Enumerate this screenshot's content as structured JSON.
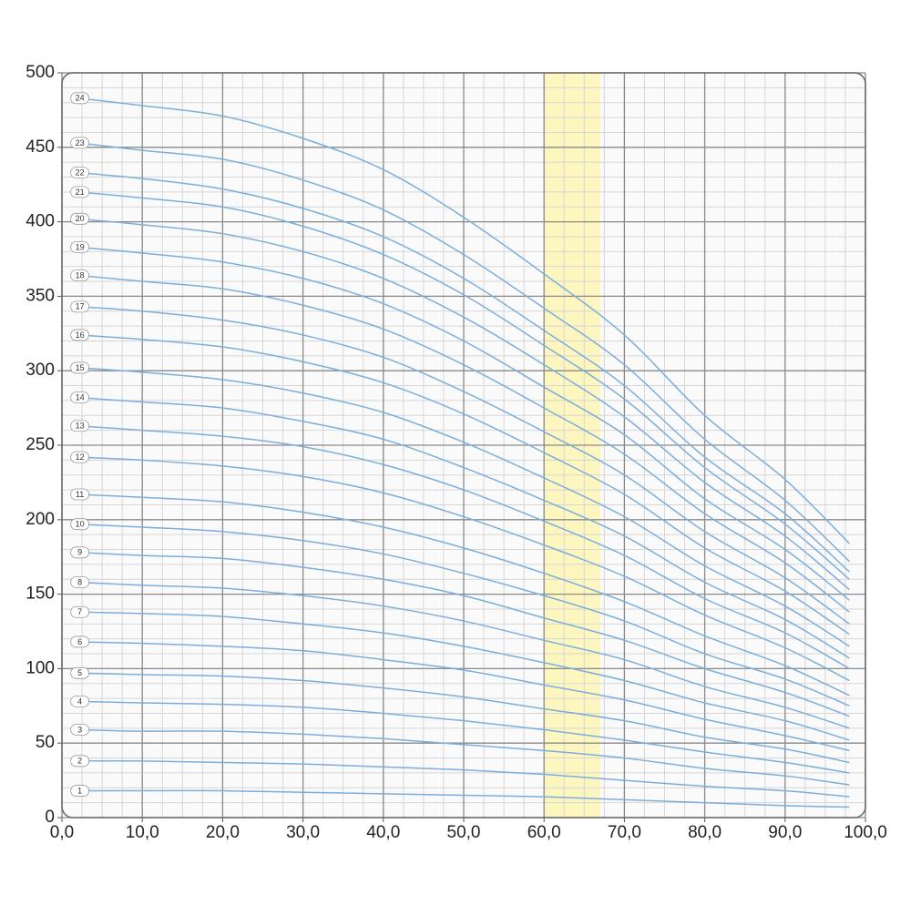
{
  "chart_data": {
    "type": "line",
    "x": [
      2,
      10,
      20,
      30,
      40,
      50,
      60,
      70,
      80,
      90,
      98
    ],
    "series": [
      {
        "name": "1",
        "color": "#7aaedc",
        "values": [
          18,
          18,
          18,
          17,
          16,
          15,
          14,
          12,
          10,
          8,
          7
        ]
      },
      {
        "name": "2",
        "color": "#7aaedc",
        "values": [
          38,
          38,
          37,
          36,
          34,
          32,
          29,
          25,
          21,
          18,
          14
        ]
      },
      {
        "name": "3",
        "color": "#7aaedc",
        "values": [
          59,
          58,
          58,
          56,
          53,
          49,
          45,
          40,
          33,
          28,
          22
        ]
      },
      {
        "name": "4",
        "color": "#7aaedc",
        "values": [
          78,
          77,
          76,
          74,
          70,
          65,
          59,
          52,
          44,
          37,
          30
        ]
      },
      {
        "name": "5",
        "color": "#7aaedc",
        "values": [
          97,
          96,
          95,
          92,
          87,
          81,
          73,
          65,
          54,
          46,
          37
        ]
      },
      {
        "name": "6",
        "color": "#7aaedc",
        "values": [
          118,
          117,
          115,
          112,
          106,
          99,
          89,
          79,
          66,
          55,
          45
        ]
      },
      {
        "name": "7",
        "color": "#7aaedc",
        "values": [
          138,
          137,
          135,
          130,
          124,
          115,
          104,
          92,
          77,
          65,
          52
        ]
      },
      {
        "name": "8",
        "color": "#7aaedc",
        "values": [
          158,
          156,
          154,
          149,
          142,
          132,
          119,
          106,
          88,
          74,
          60
        ]
      },
      {
        "name": "9",
        "color": "#7aaedc",
        "values": [
          178,
          176,
          174,
          168,
          160,
          149,
          134,
          119,
          100,
          84,
          68
        ]
      },
      {
        "name": "10",
        "color": "#7aaedc",
        "values": [
          197,
          195,
          192,
          186,
          177,
          164,
          149,
          132,
          110,
          93,
          75
        ]
      },
      {
        "name": "11",
        "color": "#7aaedc",
        "values": [
          217,
          215,
          212,
          205,
          195,
          181,
          164,
          145,
          122,
          102,
          82
        ]
      },
      {
        "name": "12",
        "color": "#7aaedc",
        "values": [
          242,
          240,
          236,
          229,
          218,
          202,
          183,
          162,
          136,
          114,
          92
        ]
      },
      {
        "name": "13",
        "color": "#7aaedc",
        "values": [
          263,
          260,
          256,
          249,
          237,
          220,
          199,
          176,
          147,
          124,
          100
        ]
      },
      {
        "name": "14",
        "color": "#7aaedc",
        "values": [
          282,
          279,
          275,
          266,
          254,
          235,
          213,
          189,
          158,
          133,
          107
        ]
      },
      {
        "name": "15",
        "color": "#7aaedc",
        "values": [
          302,
          299,
          294,
          285,
          272,
          252,
          228,
          202,
          169,
          142,
          115
        ]
      },
      {
        "name": "16",
        "color": "#7aaedc",
        "values": [
          324,
          321,
          316,
          306,
          292,
          271,
          245,
          217,
          181,
          152,
          123
        ]
      },
      {
        "name": "17",
        "color": "#7aaedc",
        "values": [
          343,
          340,
          334,
          324,
          309,
          286,
          259,
          230,
          192,
          161,
          130
        ]
      },
      {
        "name": "18",
        "color": "#7aaedc",
        "values": [
          364,
          360,
          355,
          344,
          328,
          304,
          275,
          244,
          204,
          171,
          138
        ]
      },
      {
        "name": "19",
        "color": "#7aaedc",
        "values": [
          383,
          379,
          373,
          362,
          345,
          320,
          289,
          257,
          214,
          180,
          146
        ]
      },
      {
        "name": "20",
        "color": "#7aaedc",
        "values": [
          402,
          398,
          392,
          380,
          362,
          336,
          304,
          269,
          225,
          189,
          153
        ]
      },
      {
        "name": "21",
        "color": "#7aaedc",
        "values": [
          420,
          416,
          410,
          397,
          378,
          351,
          317,
          281,
          235,
          197,
          160
        ]
      },
      {
        "name": "22",
        "color": "#7aaedc",
        "values": [
          433,
          429,
          422,
          409,
          390,
          362,
          327,
          290,
          242,
          204,
          165
        ]
      },
      {
        "name": "23",
        "color": "#7aaedc",
        "values": [
          453,
          448,
          442,
          428,
          408,
          378,
          342,
          304,
          254,
          213,
          172
        ]
      },
      {
        "name": "24",
        "color": "#7aaedc",
        "values": [
          483,
          478,
          471,
          456,
          435,
          403,
          365,
          324,
          270,
          227,
          184
        ]
      }
    ],
    "xlim": [
      0,
      100
    ],
    "xticks": [
      {
        "value": 0,
        "label": "0,0"
      },
      {
        "value": 10,
        "label": "10,0"
      },
      {
        "value": 20,
        "label": "20,0"
      },
      {
        "value": 30,
        "label": "30,0"
      },
      {
        "value": 40,
        "label": "40,0"
      },
      {
        "value": 50,
        "label": "50,0"
      },
      {
        "value": 60,
        "label": "60,0"
      },
      {
        "value": 70,
        "label": "70,0"
      },
      {
        "value": 80,
        "label": "80,0"
      },
      {
        "value": 90,
        "label": "90,0"
      },
      {
        "value": 100,
        "label": "100,0"
      }
    ],
    "ylim": [
      0,
      500
    ],
    "yticks": [
      0,
      50,
      100,
      150,
      200,
      250,
      300,
      350,
      400,
      450,
      500
    ],
    "grid": true,
    "minor_grid": {
      "x": 2.5,
      "y": 10
    },
    "highlight": {
      "x": [
        60,
        67
      ],
      "color": "#fdf6bf"
    }
  }
}
